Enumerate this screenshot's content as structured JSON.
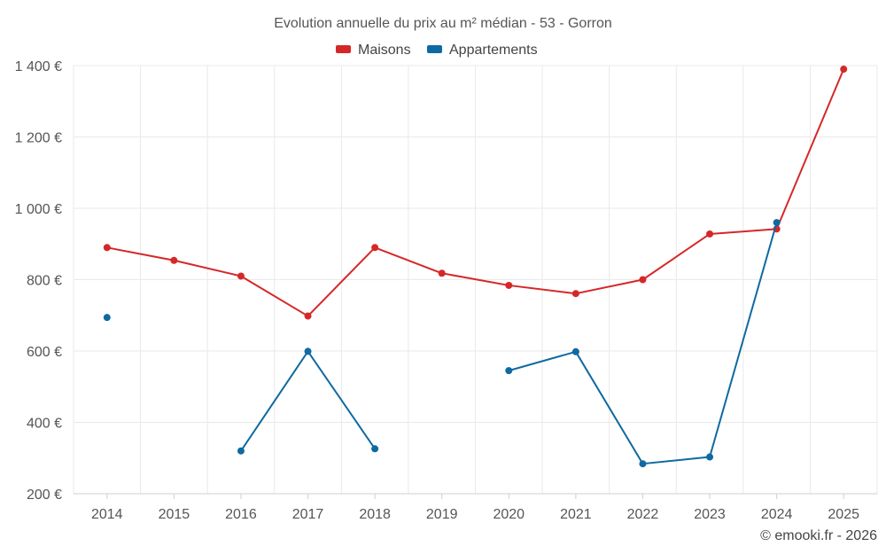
{
  "chart_data": {
    "type": "line",
    "title": "Evolution annuelle du prix au m² médian - 53 - Gorron",
    "categories": [
      "2014",
      "2015",
      "2016",
      "2017",
      "2018",
      "2019",
      "2020",
      "2021",
      "2022",
      "2023",
      "2024",
      "2025"
    ],
    "ylim": [
      200,
      1400
    ],
    "yticks": [
      200,
      400,
      600,
      800,
      1000,
      1200,
      1400
    ],
    "ytick_labels": [
      "200 €",
      "400 €",
      "600 €",
      "800 €",
      "1 000 €",
      "1 200 €",
      "1 400 €"
    ],
    "grid": true,
    "legend_position": "top-center",
    "series": [
      {
        "name": "Maisons",
        "color": "#d62728",
        "values": [
          890,
          854,
          810,
          698,
          890,
          818,
          784,
          761,
          800,
          928,
          942,
          1390
        ]
      },
      {
        "name": "Appartements",
        "color": "#0e6aa0",
        "values": [
          694,
          null,
          320,
          599,
          326,
          null,
          545,
          598,
          284,
          303,
          960,
          null
        ]
      }
    ],
    "credit": "© emooki.fr - 2026"
  }
}
